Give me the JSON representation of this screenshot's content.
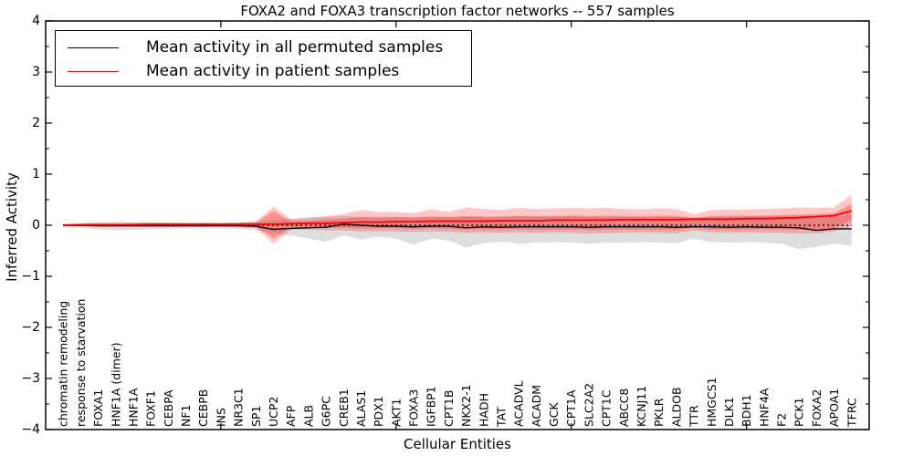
{
  "figure": {
    "title": "FOXA2 and FOXA3 transcription factor networks -- 557 samples",
    "xlabel": "Cellular Entities",
    "ylabel": "Inferred Activity"
  },
  "legend": {
    "items": [
      {
        "label": "Mean activity in all permuted samples",
        "color": "#000000"
      },
      {
        "label": "Mean activity in patient samples",
        "color": "#ff0000"
      }
    ],
    "position": "upper left"
  },
  "chart_data": {
    "type": "line",
    "title": "FOXA2 and FOXA3 transcription factor networks -- 557 samples",
    "xlabel": "Cellular Entities",
    "ylabel": "Inferred Activity",
    "ylim": [
      -4,
      4
    ],
    "xlim": [
      0,
      47
    ],
    "grid": false,
    "legend_position": "upper left",
    "yticks": [
      4,
      3,
      2,
      1,
      0,
      -1,
      -2,
      -3,
      -4
    ],
    "ytick_labels": [
      "4",
      "3",
      "2",
      "1",
      "0",
      "−1",
      "−2",
      "−3",
      "−4"
    ],
    "ytick_minor_step": 0.5,
    "xticks_major": [
      10,
      20,
      30,
      40
    ],
    "reference_line": {
      "y": 0,
      "style": "dotted",
      "color": "#000000"
    },
    "categories": [
      "chromatin remodeling",
      "response to starvation",
      "FOXA1",
      "HNF1A (dimer)",
      "HNF1A",
      "FOXF1",
      "CEBPA",
      "NF1",
      "CEBPB",
      "INS",
      "NR3C1",
      "SP1",
      "UCP2",
      "AFP",
      "ALB",
      "G6PC",
      "CREB1",
      "ALAS1",
      "PDX1",
      "AKT1",
      "FOXA3",
      "IGFBP1",
      "CPT1B",
      "NKX2-1",
      "HADH",
      "TAT",
      "ACADVL",
      "ACADM",
      "GCK",
      "CPT1A",
      "SLC2A2",
      "CPT1C",
      "ABCC8",
      "KCNJ11",
      "PKLR",
      "ALDOB",
      "TTR",
      "HMGCS1",
      "DLK1",
      "BDH1",
      "HNF4A",
      "F2",
      "PCK1",
      "FOXA2",
      "APOA1",
      "TFRC"
    ],
    "series": [
      {
        "name": "Mean activity in all permuted samples",
        "color": "#000000",
        "values": [
          0.0,
          0.0,
          -0.01,
          -0.01,
          -0.01,
          -0.01,
          -0.01,
          -0.01,
          -0.01,
          -0.01,
          -0.01,
          -0.02,
          -0.08,
          -0.06,
          -0.05,
          -0.04,
          0.02,
          0.0,
          -0.02,
          -0.02,
          -0.03,
          -0.02,
          -0.02,
          -0.05,
          -0.03,
          -0.04,
          -0.03,
          -0.03,
          -0.03,
          -0.03,
          -0.04,
          -0.03,
          -0.03,
          -0.03,
          -0.03,
          -0.04,
          -0.03,
          -0.03,
          -0.04,
          -0.03,
          -0.04,
          -0.04,
          -0.05,
          -0.1,
          -0.07,
          -0.07
        ]
      },
      {
        "name": "Mean activity in patient samples",
        "color": "#ff0000",
        "values": [
          0.0,
          0.01,
          0.01,
          0.01,
          0.01,
          0.02,
          0.02,
          0.02,
          0.02,
          0.02,
          0.02,
          0.02,
          0.02,
          0.03,
          0.04,
          0.04,
          0.05,
          0.06,
          0.06,
          0.07,
          0.07,
          0.08,
          0.08,
          0.08,
          0.08,
          0.09,
          0.09,
          0.09,
          0.1,
          0.1,
          0.1,
          0.1,
          0.11,
          0.11,
          0.11,
          0.11,
          0.12,
          0.12,
          0.12,
          0.13,
          0.13,
          0.14,
          0.15,
          0.17,
          0.19,
          0.28
        ]
      }
    ],
    "bands": [
      {
        "name": "permuted-samples-spread",
        "fill": "rgba(0,0,0,0.13)",
        "upper": [
          0.03,
          0.04,
          0.06,
          0.07,
          0.06,
          0.06,
          0.05,
          0.04,
          0.05,
          0.04,
          0.05,
          0.07,
          0.1,
          0.13,
          0.16,
          0.16,
          0.18,
          0.16,
          0.17,
          0.16,
          0.16,
          0.17,
          0.16,
          0.17,
          0.16,
          0.17,
          0.18,
          0.17,
          0.17,
          0.18,
          0.17,
          0.17,
          0.17,
          0.16,
          0.17,
          0.17,
          0.14,
          0.17,
          0.17,
          0.17,
          0.18,
          0.18,
          0.19,
          0.18,
          0.19,
          0.2
        ],
        "lower": [
          -0.04,
          -0.05,
          -0.08,
          -0.1,
          -0.09,
          -0.08,
          -0.07,
          -0.06,
          -0.06,
          -0.06,
          -0.07,
          -0.09,
          -0.16,
          -0.2,
          -0.26,
          -0.32,
          -0.2,
          -0.28,
          -0.22,
          -0.26,
          -0.38,
          -0.26,
          -0.3,
          -0.44,
          -0.35,
          -0.32,
          -0.36,
          -0.34,
          -0.33,
          -0.34,
          -0.36,
          -0.34,
          -0.34,
          -0.33,
          -0.34,
          -0.35,
          -0.26,
          -0.33,
          -0.34,
          -0.33,
          -0.34,
          -0.36,
          -0.47,
          -0.42,
          -0.36,
          -0.4
        ]
      },
      {
        "name": "patient-samples-outer-spread",
        "fill": "rgba(255,0,0,0.22)",
        "upper": [
          0.02,
          0.03,
          0.04,
          0.04,
          0.05,
          0.05,
          0.05,
          0.05,
          0.05,
          0.05,
          0.06,
          0.08,
          0.36,
          0.12,
          0.14,
          0.18,
          0.22,
          0.3,
          0.26,
          0.26,
          0.24,
          0.31,
          0.26,
          0.35,
          0.32,
          0.3,
          0.34,
          0.32,
          0.33,
          0.34,
          0.33,
          0.34,
          0.32,
          0.31,
          0.33,
          0.32,
          0.22,
          0.3,
          0.31,
          0.31,
          0.32,
          0.33,
          0.35,
          0.34,
          0.35,
          0.6
        ],
        "lower": [
          -0.02,
          -0.02,
          -0.03,
          -0.03,
          -0.03,
          -0.03,
          -0.03,
          -0.03,
          -0.03,
          -0.03,
          -0.04,
          -0.06,
          -0.36,
          -0.08,
          -0.08,
          -0.1,
          -0.1,
          -0.12,
          -0.12,
          -0.12,
          -0.13,
          -0.12,
          -0.13,
          -0.15,
          -0.14,
          -0.15,
          -0.14,
          -0.15,
          -0.14,
          -0.15,
          -0.16,
          -0.15,
          -0.15,
          -0.14,
          -0.15,
          -0.16,
          -0.1,
          -0.14,
          -0.15,
          -0.14,
          -0.15,
          -0.15,
          -0.16,
          -0.16,
          -0.12,
          -0.02
        ]
      },
      {
        "name": "patient-samples-inner-spread",
        "fill": "rgba(255,0,0,0.26)",
        "upper": [
          0.01,
          0.02,
          0.02,
          0.02,
          0.03,
          0.03,
          0.03,
          0.03,
          0.03,
          0.03,
          0.04,
          0.05,
          0.28,
          0.08,
          0.09,
          0.11,
          0.13,
          0.16,
          0.15,
          0.16,
          0.15,
          0.17,
          0.16,
          0.18,
          0.17,
          0.17,
          0.18,
          0.18,
          0.18,
          0.19,
          0.18,
          0.19,
          0.18,
          0.18,
          0.19,
          0.18,
          0.15,
          0.18,
          0.19,
          0.19,
          0.19,
          0.2,
          0.21,
          0.22,
          0.24,
          0.42
        ],
        "lower": [
          -0.01,
          -0.01,
          -0.01,
          -0.01,
          -0.01,
          -0.01,
          -0.01,
          -0.01,
          -0.01,
          -0.01,
          -0.02,
          -0.03,
          -0.26,
          -0.04,
          -0.04,
          -0.05,
          -0.05,
          -0.06,
          -0.06,
          -0.06,
          -0.07,
          -0.06,
          -0.07,
          -0.08,
          -0.08,
          -0.08,
          -0.08,
          -0.08,
          -0.08,
          -0.08,
          -0.09,
          -0.08,
          -0.08,
          -0.08,
          -0.08,
          -0.09,
          -0.05,
          -0.08,
          -0.08,
          -0.08,
          -0.08,
          -0.08,
          -0.09,
          -0.09,
          -0.06,
          0.1
        ]
      }
    ]
  },
  "colors": {
    "spine": "#000000",
    "background": "#ffffff",
    "permuted_line": "#000000",
    "patient_line": "#ff0000"
  }
}
